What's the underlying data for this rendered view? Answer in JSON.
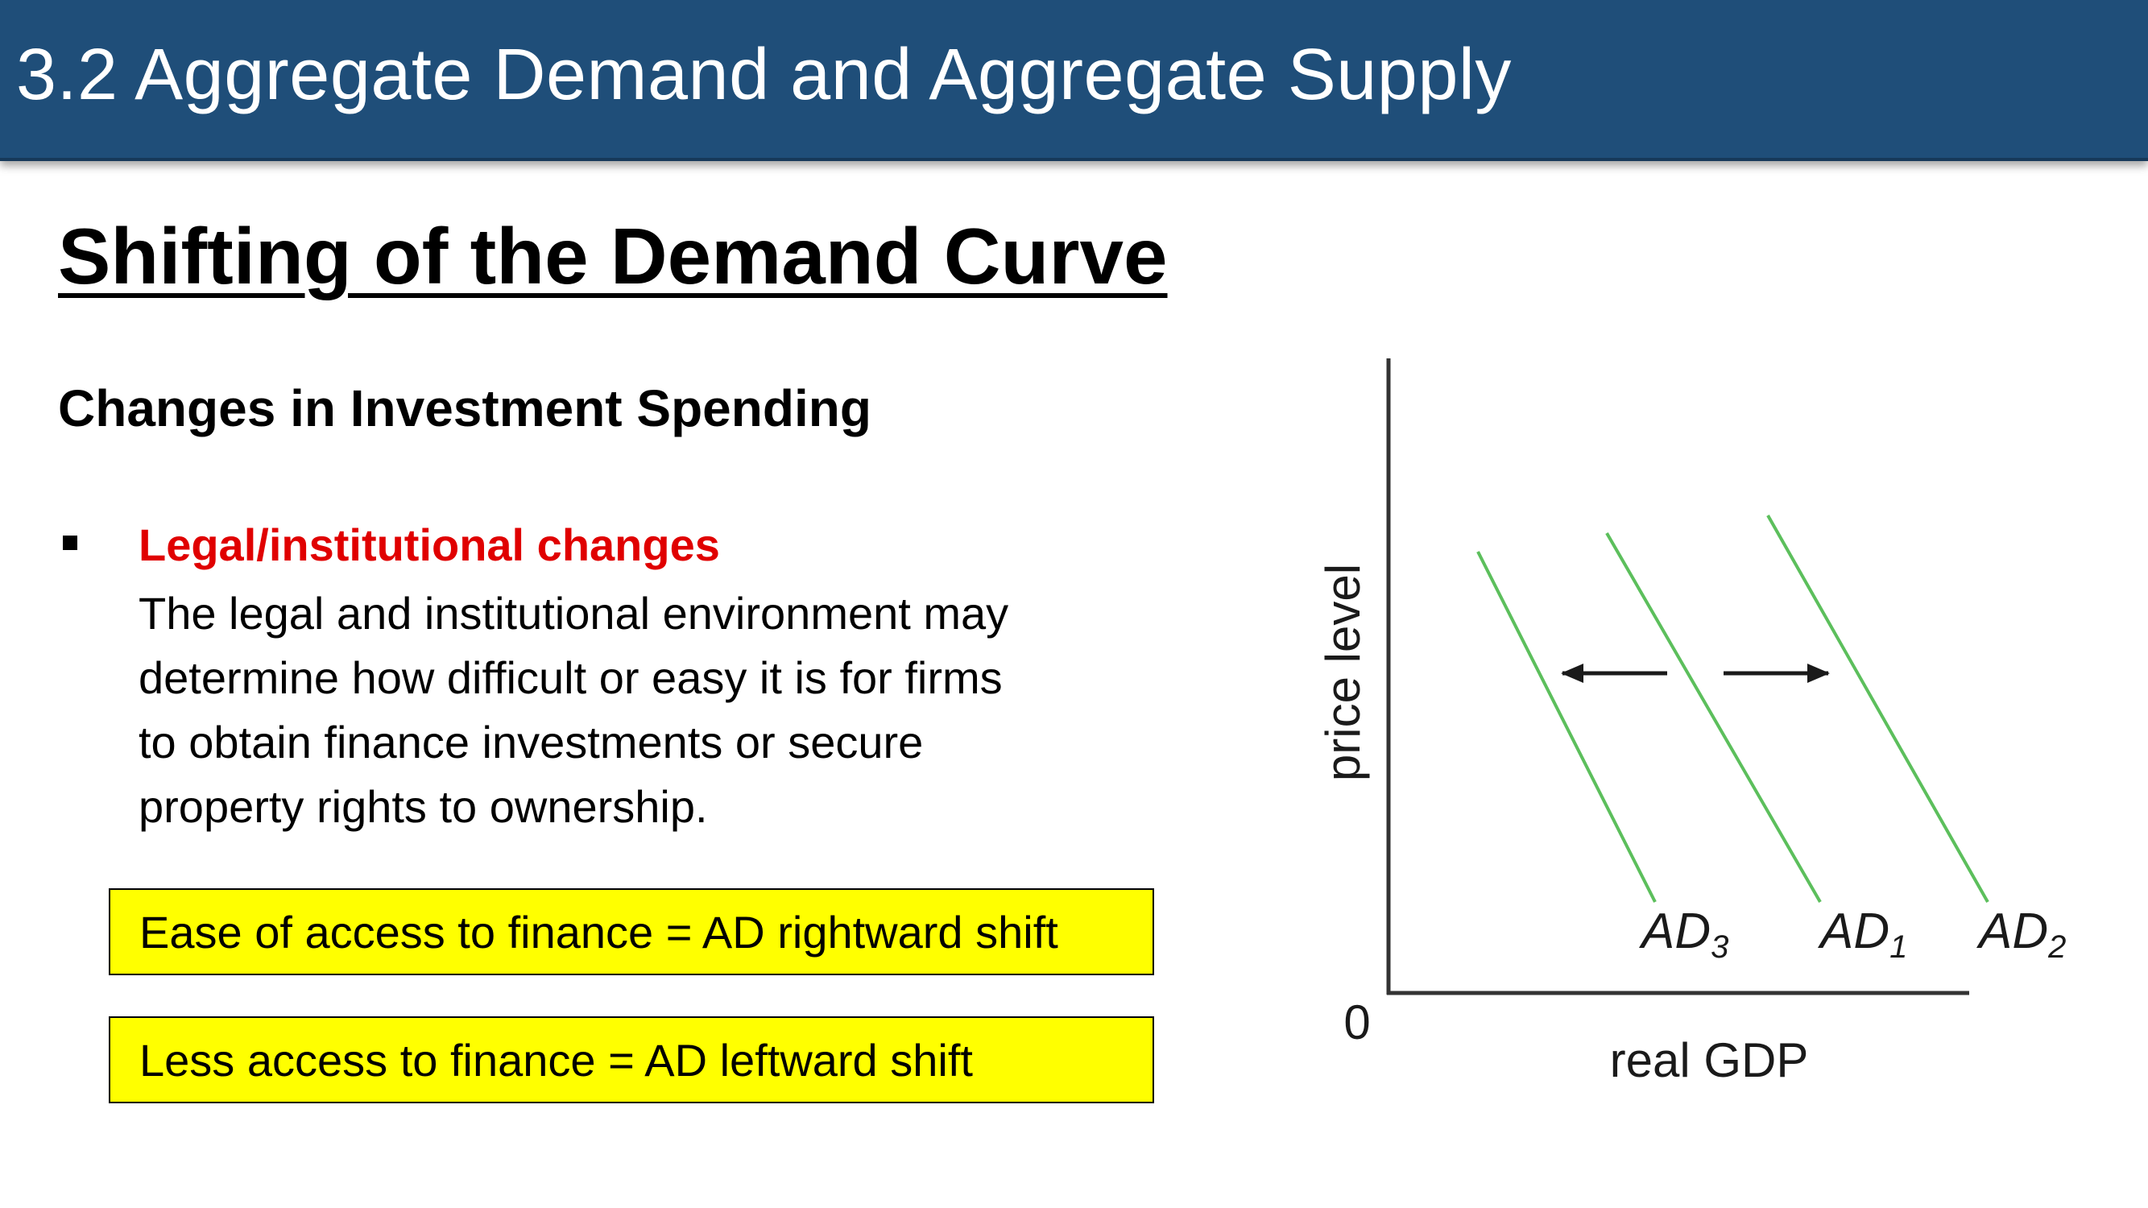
{
  "header": {
    "title": "3.2 Aggregate Demand and Aggregate Supply"
  },
  "slide": {
    "title": "Shifting of the Demand Curve",
    "subtitle": "Changes in Investment Spending",
    "bullet": {
      "heading": "Legal/institutional changes",
      "lines": [
        "The legal and institutional environment may",
        "determine how difficult or easy it is for firms",
        "to obtain finance investments or secure",
        "property rights to ownership."
      ]
    },
    "callouts": [
      "Ease of access to finance = AD rightward shift",
      "Less access to finance = AD leftward shift"
    ]
  },
  "diagram": {
    "ylabel": "price level",
    "xlabel": "real GDP",
    "origin": "0",
    "curves": [
      {
        "base": "AD",
        "sub": "3"
      },
      {
        "base": "AD",
        "sub": "1"
      },
      {
        "base": "AD",
        "sub": "2"
      }
    ],
    "colors": {
      "curve": "#5cbf5c",
      "axis": "#333333",
      "arrow": "#1a1a1a"
    }
  }
}
